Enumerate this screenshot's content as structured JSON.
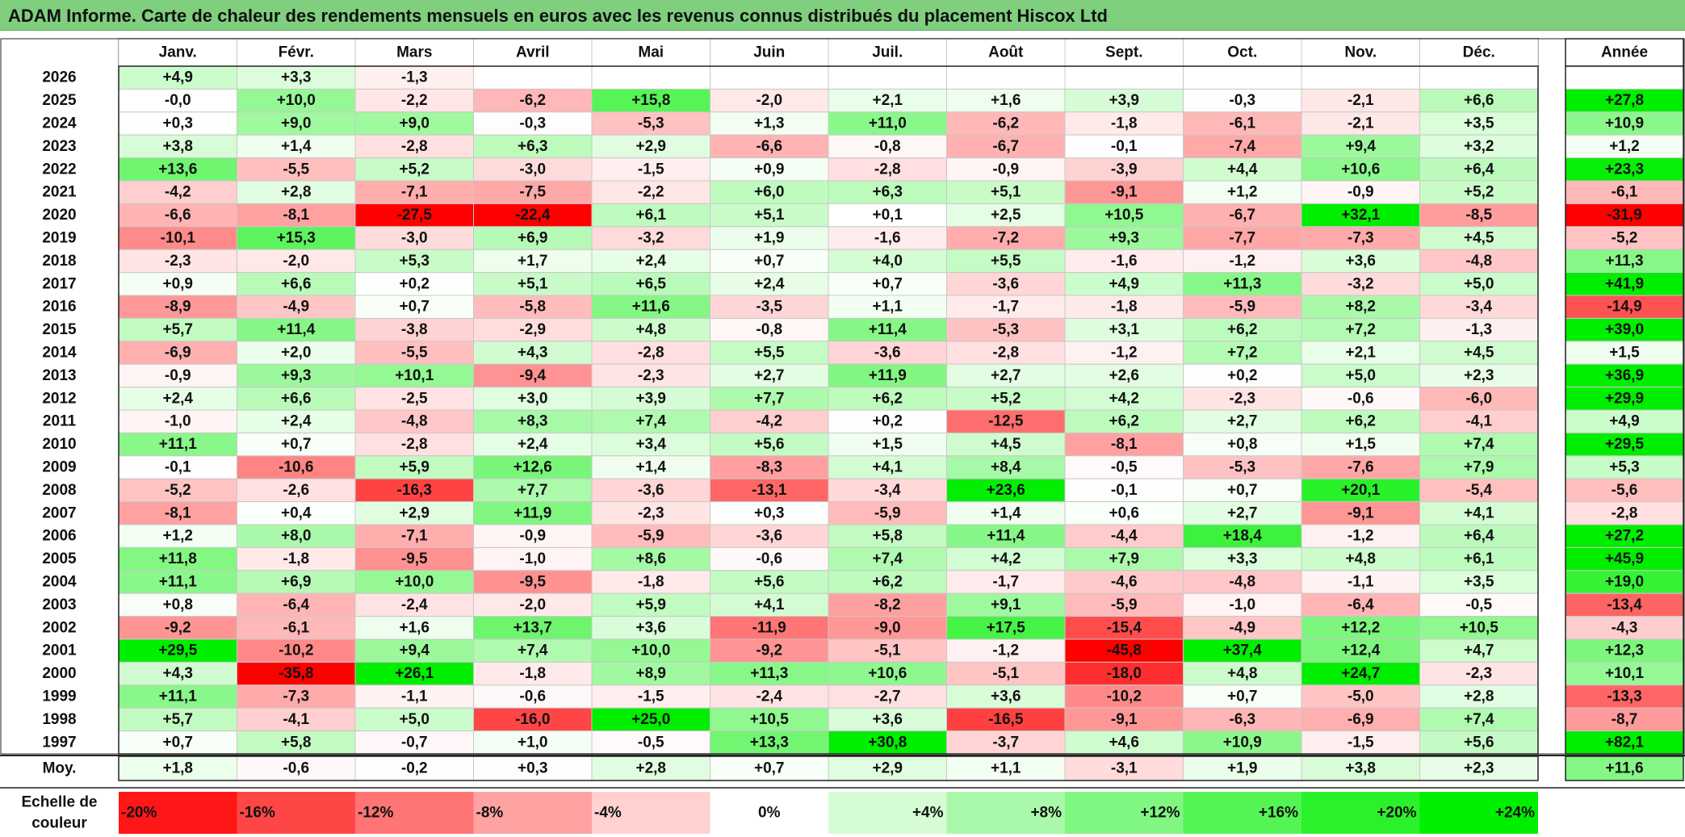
{
  "title": "ADAM Informe. Carte de chaleur des rendements mensuels en euros avec les revenus connus distribués du placement Hiscox Ltd",
  "colors": {
    "title_bg": "#7fcf7f",
    "positive_max": "#00ee00",
    "negative_max": "#ff0000",
    "neutral": "#ffffff",
    "grid": "#c8c8c8"
  },
  "chart_data": {
    "type": "heatmap",
    "title": "ADAM Informe. Carte de chaleur des rendements mensuels en euros avec les revenus connus distribués du placement Hiscox Ltd",
    "columns": [
      "Janv.",
      "Févr.",
      "Mars",
      "Avril",
      "Mai",
      "Juin",
      "Juil.",
      "Août",
      "Sept.",
      "Oct.",
      "Nov.",
      "Déc."
    ],
    "year_column": "Année",
    "rows": [
      {
        "year": "2026",
        "values": [
          "+4,9",
          "+3,3",
          "-1,3",
          "",
          "",
          "",
          "",
          "",
          "",
          "",
          "",
          ""
        ],
        "annual": ""
      },
      {
        "year": "2025",
        "values": [
          "-0,0",
          "+10,0",
          "-2,2",
          "-6,2",
          "+15,8",
          "-2,0",
          "+2,1",
          "+1,6",
          "+3,9",
          "-0,3",
          "-2,1",
          "+6,6"
        ],
        "annual": "+27,8"
      },
      {
        "year": "2024",
        "values": [
          "+0,3",
          "+9,0",
          "+9,0",
          "-0,3",
          "-5,3",
          "+1,3",
          "+11,0",
          "-6,2",
          "-1,8",
          "-6,1",
          "-2,1",
          "+3,5"
        ],
        "annual": "+10,9"
      },
      {
        "year": "2023",
        "values": [
          "+3,8",
          "+1,4",
          "-2,8",
          "+6,3",
          "+2,9",
          "-6,6",
          "-0,8",
          "-6,7",
          "-0,1",
          "-7,4",
          "+9,4",
          "+3,2"
        ],
        "annual": "+1,2"
      },
      {
        "year": "2022",
        "values": [
          "+13,6",
          "-5,5",
          "+5,2",
          "-3,0",
          "-1,5",
          "+0,9",
          "-2,8",
          "-0,9",
          "-3,9",
          "+4,4",
          "+10,6",
          "+6,4"
        ],
        "annual": "+23,3"
      },
      {
        "year": "2021",
        "values": [
          "-4,2",
          "+2,8",
          "-7,1",
          "-7,5",
          "-2,2",
          "+6,0",
          "+6,3",
          "+5,1",
          "-9,1",
          "+1,2",
          "-0,9",
          "+5,2"
        ],
        "annual": "-6,1"
      },
      {
        "year": "2020",
        "values": [
          "-6,6",
          "-8,1",
          "-27,5",
          "-22,4",
          "+6,1",
          "+5,1",
          "+0,1",
          "+2,5",
          "+10,5",
          "-6,7",
          "+32,1",
          "-8,5"
        ],
        "annual": "-31,9"
      },
      {
        "year": "2019",
        "values": [
          "-10,1",
          "+15,3",
          "-3,0",
          "+6,9",
          "-3,2",
          "+1,9",
          "-1,6",
          "-7,2",
          "+9,3",
          "-7,7",
          "-7,3",
          "+4,5"
        ],
        "annual": "-5,2"
      },
      {
        "year": "2018",
        "values": [
          "-2,3",
          "-2,0",
          "+5,3",
          "+1,7",
          "+2,4",
          "+0,7",
          "+4,0",
          "+5,5",
          "-1,6",
          "-1,2",
          "+3,6",
          "-4,8"
        ],
        "annual": "+11,3"
      },
      {
        "year": "2017",
        "values": [
          "+0,9",
          "+6,6",
          "+0,2",
          "+5,1",
          "+6,5",
          "+2,4",
          "+0,7",
          "-3,6",
          "+4,9",
          "+11,3",
          "-3,2",
          "+5,0"
        ],
        "annual": "+41,9"
      },
      {
        "year": "2016",
        "values": [
          "-8,9",
          "-4,9",
          "+0,7",
          "-5,8",
          "+11,6",
          "-3,5",
          "+1,1",
          "-1,7",
          "-1,8",
          "-5,9",
          "+8,2",
          "-3,4"
        ],
        "annual": "-14,9"
      },
      {
        "year": "2015",
        "values": [
          "+5,7",
          "+11,4",
          "-3,8",
          "-2,9",
          "+4,8",
          "-0,8",
          "+11,4",
          "-5,3",
          "+3,1",
          "+6,2",
          "+7,2",
          "-1,3"
        ],
        "annual": "+39,0"
      },
      {
        "year": "2014",
        "values": [
          "-6,9",
          "+2,0",
          "-5,5",
          "+4,3",
          "-2,8",
          "+5,5",
          "-3,6",
          "-2,8",
          "-1,2",
          "+7,2",
          "+2,1",
          "+4,5"
        ],
        "annual": "+1,5"
      },
      {
        "year": "2013",
        "values": [
          "-0,9",
          "+9,3",
          "+10,1",
          "-9,4",
          "-2,3",
          "+2,7",
          "+11,9",
          "+2,7",
          "+2,6",
          "+0,2",
          "+5,0",
          "+2,3"
        ],
        "annual": "+36,9"
      },
      {
        "year": "2012",
        "values": [
          "+2,4",
          "+6,6",
          "-2,5",
          "+3,0",
          "+3,9",
          "+7,7",
          "+6,2",
          "+5,2",
          "+4,2",
          "-2,3",
          "-0,6",
          "-6,0"
        ],
        "annual": "+29,9"
      },
      {
        "year": "2011",
        "values": [
          "-1,0",
          "+2,4",
          "-4,8",
          "+8,3",
          "+7,4",
          "-4,2",
          "+0,2",
          "-12,5",
          "+6,2",
          "+2,7",
          "+6,2",
          "-4,1"
        ],
        "annual": "+4,9"
      },
      {
        "year": "2010",
        "values": [
          "+11,1",
          "+0,7",
          "-2,8",
          "+2,4",
          "+3,4",
          "+5,6",
          "+1,5",
          "+4,5",
          "-8,1",
          "+0,8",
          "+1,5",
          "+7,4"
        ],
        "annual": "+29,5"
      },
      {
        "year": "2009",
        "values": [
          "-0,1",
          "-10,6",
          "+5,9",
          "+12,6",
          "+1,4",
          "-8,3",
          "+4,1",
          "+8,4",
          "-0,5",
          "-5,3",
          "-7,6",
          "+7,9"
        ],
        "annual": "+5,3"
      },
      {
        "year": "2008",
        "values": [
          "-5,2",
          "-2,6",
          "-16,3",
          "+7,7",
          "-3,6",
          "-13,1",
          "-3,4",
          "+23,6",
          "-0,1",
          "+0,7",
          "+20,1",
          "-5,4"
        ],
        "annual": "-5,6"
      },
      {
        "year": "2007",
        "values": [
          "-8,1",
          "+0,4",
          "+2,9",
          "+11,9",
          "-2,3",
          "+0,3",
          "-5,9",
          "+1,4",
          "+0,6",
          "+2,7",
          "-9,1",
          "+4,1"
        ],
        "annual": "-2,8"
      },
      {
        "year": "2006",
        "values": [
          "+1,2",
          "+8,0",
          "-7,1",
          "-0,9",
          "-5,9",
          "-3,6",
          "+5,8",
          "+11,4",
          "-4,4",
          "+18,4",
          "-1,2",
          "+6,4"
        ],
        "annual": "+27,2"
      },
      {
        "year": "2005",
        "values": [
          "+11,8",
          "-1,8",
          "-9,5",
          "-1,0",
          "+8,6",
          "-0,6",
          "+7,4",
          "+4,2",
          "+7,9",
          "+3,3",
          "+4,8",
          "+6,1"
        ],
        "annual": "+45,9"
      },
      {
        "year": "2004",
        "values": [
          "+11,1",
          "+6,9",
          "+10,0",
          "-9,5",
          "-1,8",
          "+5,6",
          "+6,2",
          "-1,7",
          "-4,6",
          "-4,8",
          "-1,1",
          "+3,5"
        ],
        "annual": "+19,0"
      },
      {
        "year": "2003",
        "values": [
          "+0,8",
          "-6,4",
          "-2,4",
          "-2,0",
          "+5,9",
          "+4,1",
          "-8,2",
          "+9,1",
          "-5,9",
          "-1,0",
          "-6,4",
          "-0,5"
        ],
        "annual": "-13,4"
      },
      {
        "year": "2002",
        "values": [
          "-9,2",
          "-6,1",
          "+1,6",
          "+13,7",
          "+3,6",
          "-11,9",
          "-9,0",
          "+17,5",
          "-15,4",
          "-4,9",
          "+12,2",
          "+10,5"
        ],
        "annual": "-4,3"
      },
      {
        "year": "2001",
        "values": [
          "+29,5",
          "-10,2",
          "+9,4",
          "+7,4",
          "+10,0",
          "-9,2",
          "-5,1",
          "-1,2",
          "-45,8",
          "+37,4",
          "+12,4",
          "+4,7"
        ],
        "annual": "+12,3"
      },
      {
        "year": "2000",
        "values": [
          "+4,3",
          "-35,8",
          "+26,1",
          "-1,8",
          "+8,9",
          "+11,3",
          "+10,6",
          "-5,1",
          "-18,0",
          "+4,8",
          "+24,7",
          "-2,3"
        ],
        "annual": "+10,1"
      },
      {
        "year": "1999",
        "values": [
          "+11,1",
          "-7,3",
          "-1,1",
          "-0,6",
          "-1,5",
          "-2,4",
          "-2,7",
          "+3,6",
          "-10,2",
          "+0,7",
          "-5,0",
          "+2,8"
        ],
        "annual": "-13,3"
      },
      {
        "year": "1998",
        "values": [
          "+5,7",
          "-4,1",
          "+5,0",
          "-16,0",
          "+25,0",
          "+10,5",
          "+3,6",
          "-16,5",
          "-9,1",
          "-6,3",
          "-6,9",
          "+7,4"
        ],
        "annual": "-8,7"
      },
      {
        "year": "1997",
        "values": [
          "+0,7",
          "+5,8",
          "-0,7",
          "+1,0",
          "-0,5",
          "+13,3",
          "+30,8",
          "-3,7",
          "+4,6",
          "+10,9",
          "-1,5",
          "+5,6"
        ],
        "annual": "+82,1"
      }
    ],
    "average": {
      "label": "Moy.",
      "values": [
        "+1,8",
        "-0,6",
        "-0,2",
        "+0,3",
        "+2,8",
        "+0,7",
        "+2,9",
        "+1,1",
        "-3,1",
        "+1,9",
        "+3,8",
        "+2,3"
      ],
      "annual": "+11,6"
    },
    "scale": {
      "label_line1": "Echelle de",
      "label_line2": "couleur",
      "steps": [
        {
          "label": "-20%",
          "value": -20
        },
        {
          "label": "-16%",
          "value": -16
        },
        {
          "label": "-12%",
          "value": -12
        },
        {
          "label": "-8%",
          "value": -8
        },
        {
          "label": "-4%",
          "value": -4
        },
        {
          "label": "0%",
          "value": 0
        },
        {
          "label": "+4%",
          "value": 4
        },
        {
          "label": "+8%",
          "value": 8
        },
        {
          "label": "+12%",
          "value": 12
        },
        {
          "label": "+16%",
          "value": 16
        },
        {
          "label": "+20%",
          "value": 20
        },
        {
          "label": "+24%",
          "value": 24
        }
      ]
    }
  }
}
